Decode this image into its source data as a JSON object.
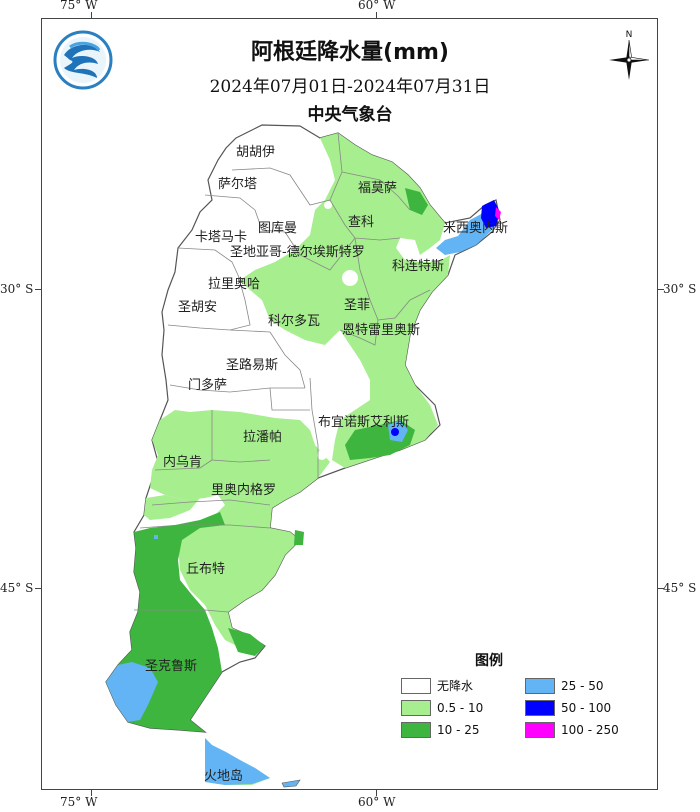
{
  "map": {
    "title": "阿根廷降水量(mm)",
    "date_range": "2024年07月01日-2024年07月31日",
    "agency": "中央气象台",
    "longitude_ticks": [
      {
        "label": "75° W",
        "lon": -75
      },
      {
        "label": "60° W",
        "lon": -60
      }
    ],
    "latitude_ticks": [
      {
        "label": "30° S",
        "lat": -30
      },
      {
        "label": "45° S",
        "lat": -45
      }
    ],
    "compass_label": "N",
    "logo_icon": "cma-logo-icon",
    "regions": [
      {
        "key": "jujuy",
        "label": "胡胡伊"
      },
      {
        "key": "salta",
        "label": "萨尔塔"
      },
      {
        "key": "formosa",
        "label": "福莫萨"
      },
      {
        "key": "tucuman",
        "label": "图库曼"
      },
      {
        "key": "chaco",
        "label": "查科"
      },
      {
        "key": "misiones",
        "label": "米西奥内斯"
      },
      {
        "key": "catamarca",
        "label": "卡塔马卡"
      },
      {
        "key": "santiago",
        "label": "圣地亚哥-德尔埃斯特罗"
      },
      {
        "key": "corrientes",
        "label": "科连特斯"
      },
      {
        "key": "larioja",
        "label": "拉里奥哈"
      },
      {
        "key": "sanjuan",
        "label": "圣胡安"
      },
      {
        "key": "santafe",
        "label": "圣菲"
      },
      {
        "key": "cordoba",
        "label": "科尔多瓦"
      },
      {
        "key": "entrerios",
        "label": "恩特雷里奥斯"
      },
      {
        "key": "sanluis",
        "label": "圣路易斯"
      },
      {
        "key": "mendoza",
        "label": "门多萨"
      },
      {
        "key": "buenosaires",
        "label": "布宜诺斯艾利斯"
      },
      {
        "key": "lapampa",
        "label": "拉潘帕"
      },
      {
        "key": "neuquen",
        "label": "内乌肯"
      },
      {
        "key": "rionegro",
        "label": "里奥内格罗"
      },
      {
        "key": "chubut",
        "label": "丘布特"
      },
      {
        "key": "santacruz",
        "label": "圣克鲁斯"
      },
      {
        "key": "tierradelfuego",
        "label": "火地岛"
      }
    ]
  },
  "legend": {
    "title": "图例",
    "items": [
      {
        "label": "无降水",
        "color": "#ffffff"
      },
      {
        "label": "25  - 50",
        "color": "#62b4f4"
      },
      {
        "label": "0.5 - 10",
        "color": "#a6ee8e"
      },
      {
        "label": "50  - 100",
        "color": "#0000ff"
      },
      {
        "label": "10  - 25",
        "color": "#3eb53e"
      },
      {
        "label": "100 - 250",
        "color": "#ff00ff"
      }
    ]
  },
  "colors": {
    "none": "#ffffff",
    "light": "#a6ee8e",
    "medium": "#3eb53e",
    "heavy": "#62b4f4",
    "very_heavy": "#0000ff",
    "extreme": "#ff00ff",
    "border": "#888888"
  }
}
